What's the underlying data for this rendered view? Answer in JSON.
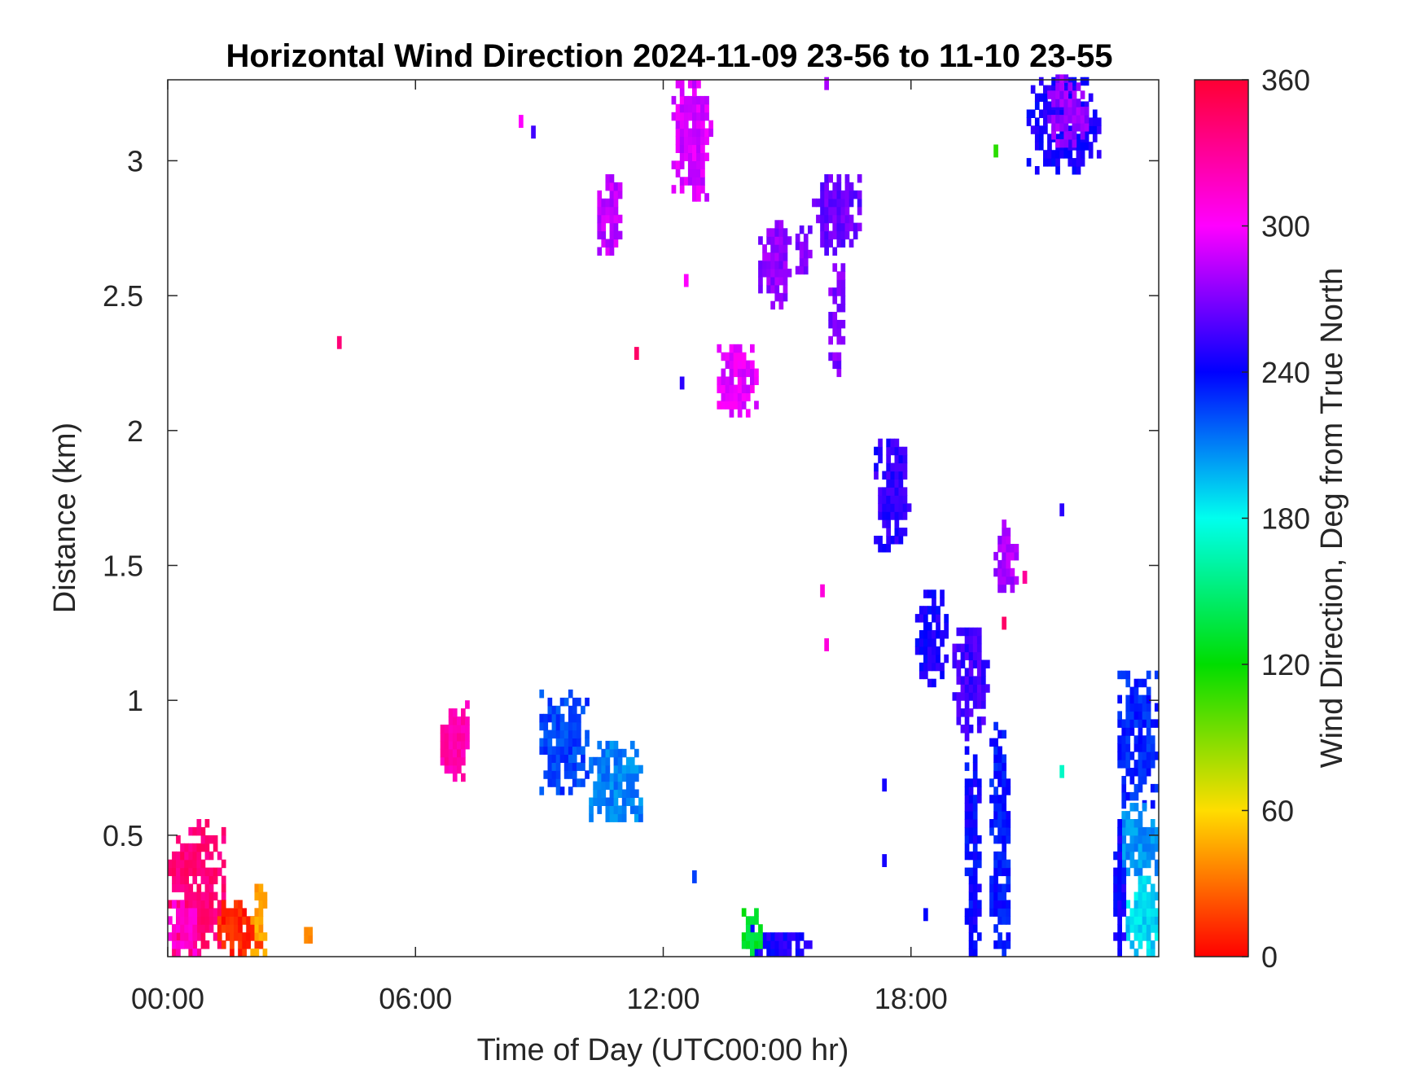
{
  "chart_data": {
    "type": "heatmap",
    "title": "Horizontal Wind Direction 2024-11-09 23-56 to 11-10 23-55",
    "xlabel": "Time of Day (UTC00:00 hr)",
    "ylabel": "Distance (km)",
    "x_ticks": [
      {
        "value": 0,
        "label": "00:00"
      },
      {
        "value": 6,
        "label": "06:00"
      },
      {
        "value": 12,
        "label": "12:00"
      },
      {
        "value": 18,
        "label": "18:00"
      }
    ],
    "y_ticks": [
      {
        "value": 0.5,
        "label": "0.5"
      },
      {
        "value": 1,
        "label": "1"
      },
      {
        "value": 1.5,
        "label": "1.5"
      },
      {
        "value": 2,
        "label": "2"
      },
      {
        "value": 2.5,
        "label": "2.5"
      },
      {
        "value": 3,
        "label": "3"
      }
    ],
    "xlim": [
      0,
      24
    ],
    "ylim": [
      0.05,
      3.3
    ],
    "colorbar": {
      "label": "Wind Direction, Deg from True North",
      "range": [
        0,
        360
      ],
      "ticks": [
        {
          "value": 0,
          "label": "0"
        },
        {
          "value": 60,
          "label": "60"
        },
        {
          "value": 120,
          "label": "120"
        },
        {
          "value": 180,
          "label": "180"
        },
        {
          "value": 240,
          "label": "240"
        },
        {
          "value": 300,
          "label": "300"
        },
        {
          "value": 360,
          "label": "360"
        }
      ],
      "colormap": [
        "#ff0000",
        "#ffdd00",
        "#00dd00",
        "#00ffee",
        "#0000ff",
        "#ff00ff",
        "#ff0033"
      ]
    },
    "grid": false,
    "cell_size": {
      "hours": 0.1,
      "km": 0.03
    },
    "regions": [
      {
        "x": [
          0.0,
          1.4
        ],
        "y": [
          0.05,
          0.55
        ],
        "value": 340
      },
      {
        "x": [
          0.0,
          0.8
        ],
        "y": [
          0.05,
          0.25
        ],
        "value": 315
      },
      {
        "x": [
          1.2,
          2.3
        ],
        "y": [
          0.05,
          0.25
        ],
        "value": 10
      },
      {
        "x": [
          2.0,
          2.4
        ],
        "y": [
          0.05,
          0.35
        ],
        "value": 45
      },
      {
        "x": [
          3.3,
          3.5
        ],
        "y": [
          0.1,
          0.18
        ],
        "value": 30
      },
      {
        "x": [
          6.6,
          7.3
        ],
        "y": [
          0.7,
          1.0
        ],
        "value": 325
      },
      {
        "x": [
          9.0,
          10.2
        ],
        "y": [
          0.65,
          1.05
        ],
        "value": 225
      },
      {
        "x": [
          10.2,
          11.5
        ],
        "y": [
          0.55,
          0.85
        ],
        "value": 210
      },
      {
        "x": [
          10.4,
          11.0
        ],
        "y": [
          2.65,
          2.95
        ],
        "value": 285
      },
      {
        "x": [
          12.2,
          13.2
        ],
        "y": [
          2.85,
          3.3
        ],
        "value": 290
      },
      {
        "x": [
          13.3,
          14.3
        ],
        "y": [
          2.05,
          2.32
        ],
        "value": 295
      },
      {
        "x": [
          14.3,
          15.1
        ],
        "y": [
          2.45,
          2.8
        ],
        "value": 275
      },
      {
        "x": [
          15.2,
          15.6
        ],
        "y": [
          2.55,
          2.75
        ],
        "value": 270
      },
      {
        "x": [
          15.6,
          16.8
        ],
        "y": [
          2.65,
          2.95
        ],
        "value": 265
      },
      {
        "x": [
          16.0,
          16.4
        ],
        "y": [
          2.2,
          2.6
        ],
        "value": 270
      },
      {
        "x": [
          17.1,
          18.0
        ],
        "y": [
          1.55,
          1.95
        ],
        "value": 250
      },
      {
        "x": [
          18.1,
          18.9
        ],
        "y": [
          1.05,
          1.4
        ],
        "value": 245
      },
      {
        "x": [
          19.0,
          19.9
        ],
        "y": [
          0.85,
          1.3
        ],
        "value": 255
      },
      {
        "x": [
          19.3,
          19.7
        ],
        "y": [
          0.05,
          0.85
        ],
        "value": 240
      },
      {
        "x": [
          19.9,
          20.4
        ],
        "y": [
          0.05,
          0.9
        ],
        "value": 235
      },
      {
        "x": [
          20.0,
          20.6
        ],
        "y": [
          1.4,
          1.65
        ],
        "value": 280
      },
      {
        "x": [
          20.8,
          22.6
        ],
        "y": [
          2.95,
          3.3
        ],
        "value": 245
      },
      {
        "x": [
          21.3,
          22.3
        ],
        "y": [
          3.05,
          3.3
        ],
        "value": 275
      },
      {
        "x": [
          23.0,
          24.0
        ],
        "y": [
          0.6,
          1.1
        ],
        "value": 232
      },
      {
        "x": [
          23.0,
          24.0
        ],
        "y": [
          0.35,
          0.6
        ],
        "value": 205
      },
      {
        "x": [
          23.2,
          24.0
        ],
        "y": [
          0.05,
          0.35
        ],
        "value": 190
      },
      {
        "x": [
          22.9,
          23.2
        ],
        "y": [
          0.05,
          0.55
        ],
        "value": 242
      },
      {
        "x": [
          14.0,
          15.6
        ],
        "y": [
          0.05,
          0.15
        ],
        "value": 245
      },
      {
        "x": [
          13.9,
          14.4
        ],
        "y": [
          0.05,
          0.22
        ],
        "value": 130
      }
    ],
    "points": [
      {
        "x": 4.1,
        "y": 2.32,
        "value": 340
      },
      {
        "x": 11.3,
        "y": 2.28,
        "value": 345
      },
      {
        "x": 8.5,
        "y": 3.14,
        "value": 300
      },
      {
        "x": 8.8,
        "y": 3.1,
        "value": 255
      },
      {
        "x": 15.8,
        "y": 1.4,
        "value": 310
      },
      {
        "x": 15.9,
        "y": 1.2,
        "value": 310
      },
      {
        "x": 15.9,
        "y": 3.28,
        "value": 280
      },
      {
        "x": 12.5,
        "y": 2.55,
        "value": 300
      },
      {
        "x": 12.4,
        "y": 2.17,
        "value": 250
      },
      {
        "x": 21.6,
        "y": 1.7,
        "value": 250
      },
      {
        "x": 21.6,
        "y": 0.73,
        "value": 170
      },
      {
        "x": 20.0,
        "y": 3.03,
        "value": 110
      },
      {
        "x": 17.3,
        "y": 0.4,
        "value": 245
      },
      {
        "x": 17.3,
        "y": 0.68,
        "value": 245
      },
      {
        "x": 18.3,
        "y": 0.2,
        "value": 240
      },
      {
        "x": 12.7,
        "y": 0.34,
        "value": 225
      },
      {
        "x": 20.7,
        "y": 1.45,
        "value": 330
      },
      {
        "x": 20.2,
        "y": 1.28,
        "value": 345
      }
    ]
  }
}
